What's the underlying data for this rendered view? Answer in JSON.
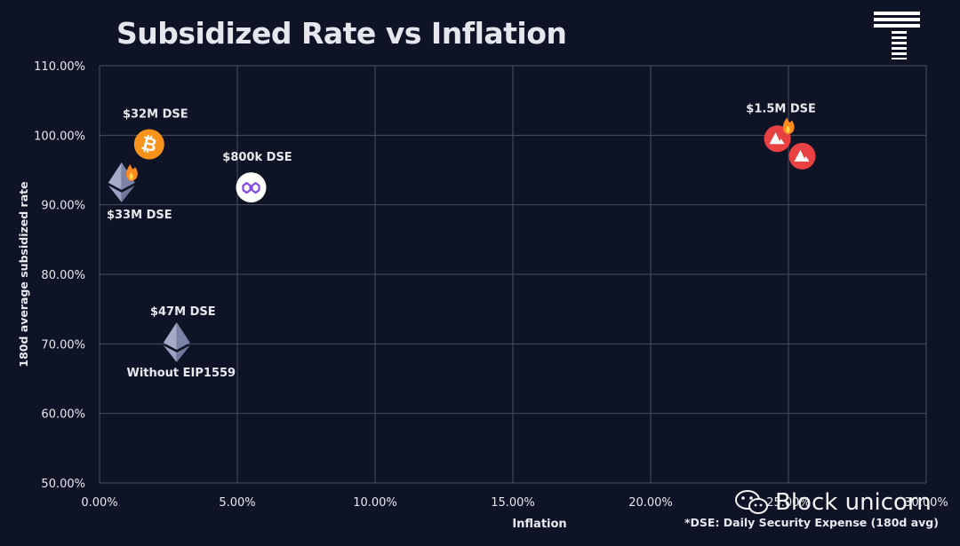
{
  "colors": {
    "background": "#0f1326",
    "grid": "#4a4f63",
    "text": "#e8e9ef",
    "bitcoin": "#f7931a",
    "ethereum": "#8a92b2",
    "polygon": "#8247e5",
    "avalanche": "#e84142",
    "fire": "#ff8a1d"
  },
  "chart_data": {
    "type": "scatter",
    "title": "Subsidized Rate vs Inflation",
    "xlabel": "Inflation",
    "ylabel": "180d average subsidized rate",
    "xlim": [
      0,
      30
    ],
    "ylim": [
      50,
      110
    ],
    "xticks": [
      0,
      5,
      10,
      15,
      20,
      25,
      30
    ],
    "yticks": [
      50,
      60,
      70,
      80,
      90,
      100,
      110
    ],
    "xtick_labels": [
      "0.00%",
      "5.00%",
      "10.00%",
      "15.00%",
      "20.00%",
      "25.00%",
      "30.00%"
    ],
    "ytick_labels": [
      "50.00%",
      "60.00%",
      "70.00%",
      "80.00%",
      "90.00%",
      "100.00%",
      "110.00%"
    ],
    "grid": true,
    "points": [
      {
        "id": "bitcoin",
        "icon": "bitcoin-icon",
        "x": 1.8,
        "y": 98.7,
        "label": "$32M DSE",
        "label_pos": "above",
        "fire": false
      },
      {
        "id": "ethereum-current",
        "icon": "ethereum-icon",
        "x": 0.8,
        "y": 93.3,
        "label": "$33M DSE",
        "label_pos": "below",
        "fire": true
      },
      {
        "id": "polygon",
        "icon": "polygon-icon",
        "x": 5.5,
        "y": 92.5,
        "label": "$800k DSE",
        "label_pos": "above",
        "fire": false
      },
      {
        "id": "ethereum-no-eip1559",
        "icon": "ethereum-icon",
        "x": 2.8,
        "y": 70.3,
        "label": "$47M DSE",
        "label_pos": "above",
        "sublabel": "Without EIP1559",
        "fire": false
      },
      {
        "id": "avalanche-1",
        "icon": "avalanche-icon",
        "x": 24.6,
        "y": 99.5,
        "label": "$1.5M DSE",
        "label_pos": "above",
        "fire": true
      },
      {
        "id": "avalanche-2",
        "icon": "avalanche-icon",
        "x": 25.5,
        "y": 97.0,
        "label": "",
        "label_pos": "none",
        "fire": false
      }
    ]
  },
  "footnote": "*DSE: Daily Security Expense (180d avg)",
  "watermark": {
    "text": "Block unicorn",
    "icon": "wechat-icon"
  },
  "logo": {
    "icon": "stacked-lines-logo-icon"
  }
}
